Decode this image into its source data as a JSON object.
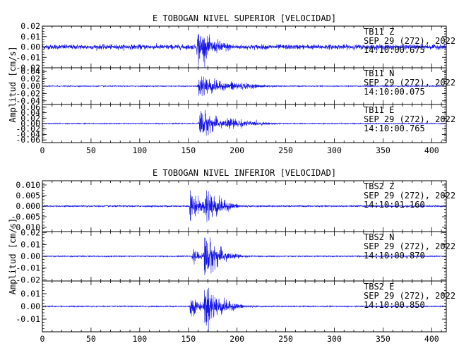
{
  "chart_data": [
    {
      "type": "line",
      "title": "E TOBOGAN NIVEL SUPERIOR [VELOCIDAD]",
      "ylabel": "Amplitud [cm/s]",
      "xlim": [
        0,
        415
      ],
      "x_ticks": [
        "0",
        "50",
        "100",
        "150",
        "200",
        "250",
        "300",
        "350",
        "400"
      ],
      "series": [
        {
          "name": "TB11 Z",
          "label_lines": [
            "TB11   Z",
            "SEP 29 (272), 2022",
            "14:10:00.675"
          ],
          "ylim": [
            -0.02,
            0.02
          ],
          "y_ticks": [
            "-0.02",
            "-0.01",
            "0.00",
            "0.01",
            "0.02"
          ],
          "noise": 0.002,
          "events": [
            {
              "t": 160,
              "amp": 0.016,
              "rise": 2,
              "decay": 14
            },
            {
              "t": 180,
              "amp": 0.006,
              "rise": 4,
              "decay": 18
            }
          ]
        },
        {
          "name": "TB11 N",
          "label_lines": [
            "TB11   N",
            "SEP 29 (272), 2022",
            "14:10:00.075"
          ],
          "ylim": [
            -0.05,
            0.05
          ],
          "y_ticks": [
            "-0.04",
            "-0.02",
            "0.00",
            "0.02",
            "0.04"
          ],
          "noise": 0.001,
          "events": [
            {
              "t": 163,
              "amp": 0.032,
              "rise": 4,
              "decay": 18
            },
            {
              "t": 195,
              "amp": 0.013,
              "rise": 6,
              "decay": 22
            }
          ]
        },
        {
          "name": "TB11 E",
          "label_lines": [
            "TB11   E",
            "SEP 29 (272), 2022",
            "14:10:00.765"
          ],
          "ylim": [
            -0.07,
            0.07
          ],
          "y_ticks": [
            "-0.06",
            "-0.04",
            "-0.02",
            "0.00",
            "0.02",
            "0.04",
            "0.06"
          ],
          "noise": 0.0015,
          "events": [
            {
              "t": 163,
              "amp": 0.05,
              "rise": 3,
              "decay": 16
            },
            {
              "t": 190,
              "amp": 0.02,
              "rise": 6,
              "decay": 25
            }
          ]
        }
      ]
    },
    {
      "type": "line",
      "title": "E TOBOGAN NIVEL INFERIOR [VELOCIDAD]",
      "ylabel": "Amplitud [cm/s]",
      "xlim": [
        0,
        415
      ],
      "x_ticks": [
        "0",
        "50",
        "100",
        "150",
        "200",
        "250",
        "300",
        "350",
        "400"
      ],
      "series": [
        {
          "name": "TBS2 Z",
          "label_lines": [
            "TBS2   Z",
            "SEP 29 (272), 2022",
            "14:10:01.160"
          ],
          "ylim": [
            -0.012,
            0.012
          ],
          "y_ticks": [
            "-0.010",
            "-0.005",
            "0.000",
            "0.005",
            "0.010"
          ],
          "noise": 0.0003,
          "events": [
            {
              "t": 152,
              "amp": 0.007,
              "rise": 1,
              "decay": 10
            },
            {
              "t": 168,
              "amp": 0.009,
              "rise": 2,
              "decay": 14
            }
          ]
        },
        {
          "name": "TBS2 N",
          "label_lines": [
            "TBS2   N",
            "SEP 29 (272), 2022",
            "14:10:00.870"
          ],
          "ylim": [
            -0.021,
            0.021
          ],
          "y_ticks": [
            "-0.02",
            "-0.01",
            "0.00",
            "0.01",
            "0.02"
          ],
          "noise": 0.0004,
          "events": [
            {
              "t": 155,
              "amp": 0.005,
              "rise": 2,
              "decay": 10
            },
            {
              "t": 167,
              "amp": 0.018,
              "rise": 2,
              "decay": 14
            }
          ]
        },
        {
          "name": "TBS2 E",
          "label_lines": [
            "TBS2   E",
            "SEP 29 (272), 2022",
            "14:10:00.850"
          ],
          "ylim": [
            -0.02,
            0.02
          ],
          "y_ticks": [
            "-0.01",
            "0.00",
            "0.01"
          ],
          "noise": 0.0004,
          "events": [
            {
              "t": 152,
              "amp": 0.008,
              "rise": 1,
              "decay": 10
            },
            {
              "t": 167,
              "amp": 0.016,
              "rise": 2,
              "decay": 16
            }
          ]
        }
      ]
    }
  ],
  "colors": {
    "trace": "#1414e6",
    "axes": "#000000"
  }
}
